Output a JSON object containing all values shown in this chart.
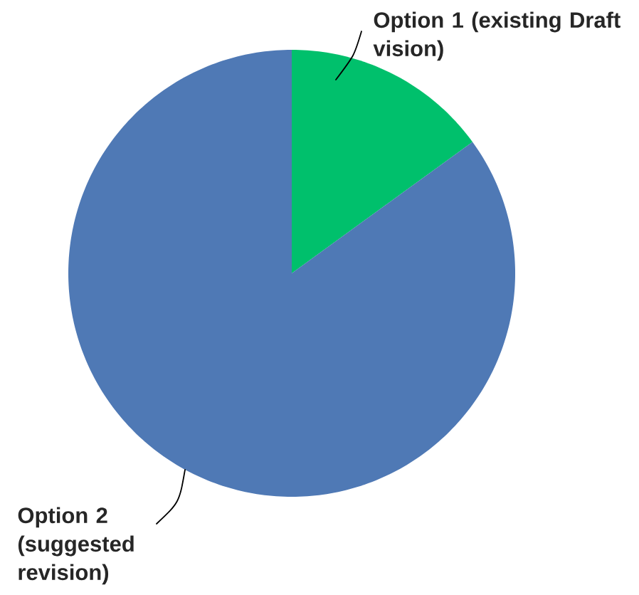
{
  "chart_data": {
    "type": "pie",
    "categories": [
      "Option 1 (existing Draft vision)",
      "Option 2 (suggested revision)"
    ],
    "values": [
      15,
      85
    ],
    "colors": [
      "#00c06c",
      "#4f79b5"
    ]
  }
}
